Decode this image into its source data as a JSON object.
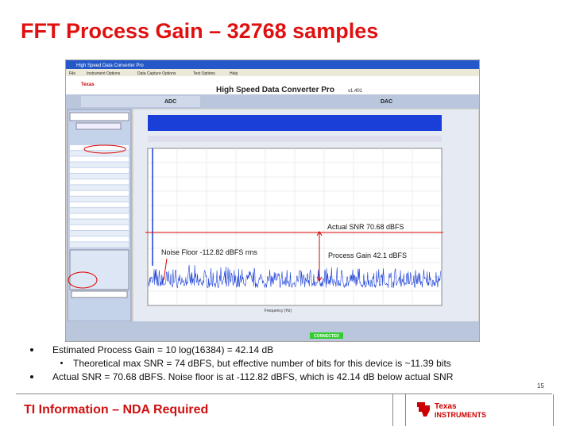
{
  "title": "FFT Process Gain – 32768 samples",
  "screenshot": {
    "window_title": "High Speed Data Converter Pro",
    "menu": [
      "File",
      "Instrument Options",
      "Data Capture Options",
      "Test Options",
      "Help"
    ],
    "app_title": "High Speed Data Converter Pro",
    "version": "v1.401",
    "tabs": [
      "ADC",
      "DAC"
    ],
    "x_axis_label": "Frequency (Hz)",
    "status": "CONNECTED",
    "annotations": {
      "actual_snr": "Actual SNR 70.68 dBFS",
      "noise_floor": "Noise Floor -112.82 dBFS rms",
      "process_gain": "Process Gain 42.1 dBFS"
    }
  },
  "bullets": [
    {
      "text": "Estimated Process Gain = 10 log(16384) = 42.14 dB",
      "sub": [
        "Theoretical max SNR = 74 dBFS, but effective number of bits for this device is ~11.39 bits"
      ]
    },
    {
      "text": "Actual SNR = 70.68 dBFS.  Noise floor is at -112.82 dBFS, which is 42.14 dB below actual SNR",
      "sub": []
    }
  ],
  "page_number": "15",
  "footer": {
    "notice": "TI Information – NDA Required",
    "logo": [
      "Texas",
      "Instruments"
    ]
  }
}
